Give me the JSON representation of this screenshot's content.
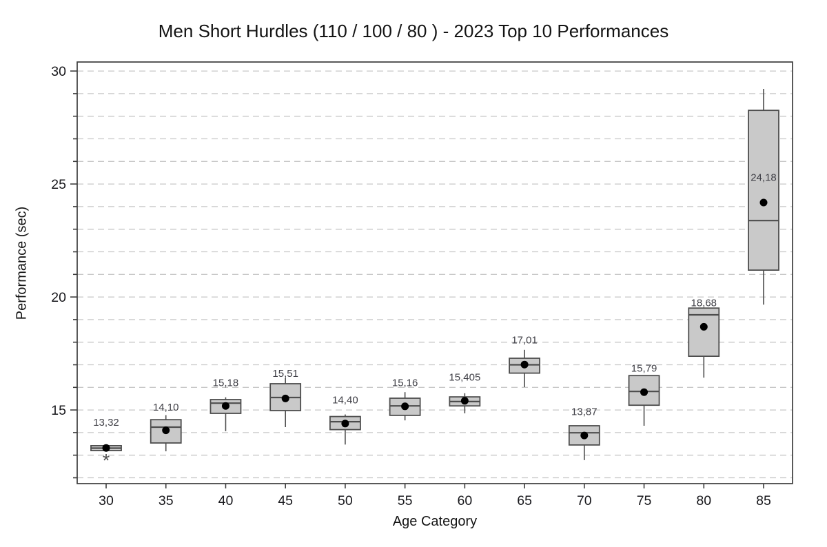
{
  "title": "Men Short Hurdles (110 / 100 / 80 ) - 2023 Top 10 Performances",
  "chart_data": {
    "type": "boxplot",
    "title": "Men Short Hurdles (110 / 100 / 80 ) - 2023 Top 10 Performances",
    "xlabel": "Age Category",
    "ylabel": "Performance (sec)",
    "ylim": [
      11.74,
      30.4
    ],
    "y_major_ticks": [
      "15",
      "20",
      "25",
      "30"
    ],
    "grid": {
      "from": 12,
      "to": 30,
      "step": 1,
      "style": "dashed",
      "orientation": "horizontal"
    },
    "legend": "none",
    "decimal_separator": ",",
    "outlier_symbol": "*",
    "categories": [
      "30",
      "35",
      "40",
      "45",
      "50",
      "55",
      "60",
      "65",
      "70",
      "75",
      "80",
      "85"
    ],
    "boxes": [
      {
        "category": "30",
        "low": 13.2,
        "q1": 13.2,
        "median": 13.31,
        "q3": 13.42,
        "high": 13.42,
        "mean": 13.32,
        "mean_label": "13,32",
        "label_v": 14.45,
        "outliers": [
          12.88
        ]
      },
      {
        "category": "35",
        "low": 13.17,
        "q1": 13.54,
        "median": 14.24,
        "q3": 14.57,
        "high": 14.77,
        "mean": 14.1,
        "mean_label": "14,10",
        "label_v": 15.12,
        "outliers": []
      },
      {
        "category": "40",
        "low": 14.06,
        "q1": 14.85,
        "median": 15.3,
        "q3": 15.46,
        "high": 15.56,
        "mean": 15.18,
        "mean_label": "15,18",
        "label_v": 16.2,
        "outliers": []
      },
      {
        "category": "45",
        "low": 14.24,
        "q1": 14.97,
        "median": 15.55,
        "q3": 16.16,
        "high": 16.42,
        "mean": 15.51,
        "mean_label": "15,51",
        "label_v": 16.62,
        "outliers": []
      },
      {
        "category": "50",
        "low": 13.47,
        "q1": 14.13,
        "median": 14.48,
        "q3": 14.71,
        "high": 14.8,
        "mean": 14.4,
        "mean_label": "14,40",
        "label_v": 15.45,
        "outliers": []
      },
      {
        "category": "55",
        "low": 14.54,
        "q1": 14.76,
        "median": 15.18,
        "q3": 15.52,
        "high": 15.79,
        "mean": 15.16,
        "mean_label": "15,16",
        "label_v": 16.2,
        "outliers": []
      },
      {
        "category": "60",
        "low": 14.85,
        "q1": 15.18,
        "median": 15.37,
        "q3": 15.58,
        "high": 15.74,
        "mean": 15.405,
        "mean_label": "15,405",
        "label_v": 16.45,
        "outliers": []
      },
      {
        "category": "65",
        "low": 16.01,
        "q1": 16.63,
        "median": 17.0,
        "q3": 17.29,
        "high": 17.66,
        "mean": 17.01,
        "mean_label": "17,01",
        "label_v": 18.1,
        "outliers": []
      },
      {
        "category": "70",
        "low": 12.78,
        "q1": 13.45,
        "median": 13.99,
        "q3": 14.3,
        "high": 14.3,
        "mean": 13.87,
        "mean_label": "13,87",
        "label_v": 14.93,
        "outliers": []
      },
      {
        "category": "75",
        "low": 14.3,
        "q1": 15.21,
        "median": 15.82,
        "q3": 16.52,
        "high": 16.52,
        "mean": 15.79,
        "mean_label": "15,79",
        "label_v": 16.85,
        "outliers": []
      },
      {
        "category": "80",
        "low": 16.43,
        "q1": 17.38,
        "median": 19.21,
        "q3": 19.51,
        "high": 19.51,
        "mean": 18.68,
        "mean_label": "18,68",
        "label_v": 19.75,
        "outliers": []
      },
      {
        "category": "85",
        "low": 19.66,
        "q1": 21.19,
        "median": 23.38,
        "q3": 28.26,
        "high": 29.21,
        "mean": 24.18,
        "mean_label": "24,18",
        "label_v": 25.3,
        "outliers": []
      }
    ],
    "colors": {
      "background": "#ffffff",
      "box_fill": "#c9c9c9",
      "box_border": "#4d4d4d",
      "frame": "#3c3c3c",
      "grid": "#c7c7c7",
      "mean_dot": "#000000",
      "tick_text": "#18181c",
      "label_text": "#3f3f46",
      "title_text": "#141414"
    }
  }
}
